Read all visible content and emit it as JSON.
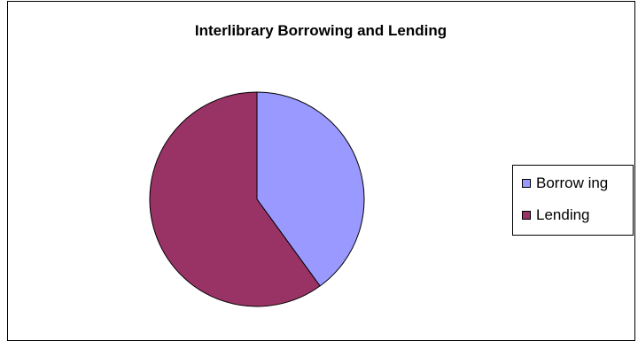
{
  "chart_data": {
    "type": "pie",
    "title": "Interlibrary Borrowing and Lending",
    "categories": [
      "Borrowing",
      "Lending"
    ],
    "values": [
      40,
      60
    ],
    "colors": [
      "#9999ff",
      "#993366"
    ],
    "legend_labels": [
      "Borrow ing",
      "Lending"
    ],
    "legend_position": "right"
  }
}
